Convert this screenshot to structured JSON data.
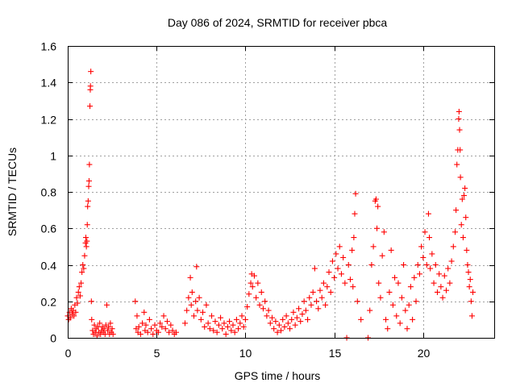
{
  "chart_data": {
    "type": "scatter",
    "title": "Day 086 of 2024, SRMTID for receiver pbca",
    "xlabel": "GPS time / hours",
    "ylabel": "SRMTID / TECUs",
    "xlim": [
      0,
      24
    ],
    "ylim": [
      0,
      1.6
    ],
    "xticks": [
      0,
      5,
      10,
      15,
      20
    ],
    "xtick_labels": [
      "0",
      "5",
      "10",
      "15",
      "20"
    ],
    "yticks": [
      0,
      0.2,
      0.4,
      0.6,
      0.8,
      1,
      1.2,
      1.4,
      1.6
    ],
    "ytick_labels": [
      "0",
      "0.2",
      "0.4",
      "0.6",
      "0.8",
      "1",
      "1.2",
      "1.4",
      "1.6"
    ],
    "grid": true,
    "marker": "+",
    "color": "#ff0000",
    "series": [
      {
        "name": "SRMTID",
        "points": [
          [
            0.0,
            0.12
          ],
          [
            0.05,
            0.1
          ],
          [
            0.1,
            0.14
          ],
          [
            0.15,
            0.11
          ],
          [
            0.2,
            0.16
          ],
          [
            0.25,
            0.13
          ],
          [
            0.3,
            0.15
          ],
          [
            0.35,
            0.12
          ],
          [
            0.4,
            0.18
          ],
          [
            0.45,
            0.14
          ],
          [
            0.5,
            0.22
          ],
          [
            0.55,
            0.19
          ],
          [
            0.6,
            0.25
          ],
          [
            0.65,
            0.28
          ],
          [
            0.7,
            0.23
          ],
          [
            0.75,
            0.3
          ],
          [
            0.8,
            0.36
          ],
          [
            0.85,
            0.4
          ],
          [
            0.9,
            0.38
          ],
          [
            0.95,
            0.45
          ],
          [
            1.0,
            0.52
          ],
          [
            1.02,
            0.55
          ],
          [
            1.05,
            0.5
          ],
          [
            1.08,
            0.53
          ],
          [
            1.1,
            0.62
          ],
          [
            1.12,
            0.72
          ],
          [
            1.15,
            0.75
          ],
          [
            1.18,
            0.83
          ],
          [
            1.2,
            0.86
          ],
          [
            1.22,
            0.95
          ],
          [
            1.25,
            1.27
          ],
          [
            1.27,
            1.36
          ],
          [
            1.28,
            1.38
          ],
          [
            1.3,
            1.46
          ],
          [
            1.33,
            0.2
          ],
          [
            1.35,
            0.1
          ],
          [
            1.4,
            0.04
          ],
          [
            1.45,
            0.02
          ],
          [
            1.5,
            0.07
          ],
          [
            1.55,
            0.03
          ],
          [
            1.6,
            0.05
          ],
          [
            1.65,
            0.01
          ],
          [
            1.7,
            0.06
          ],
          [
            1.75,
            0.03
          ],
          [
            1.8,
            0.08
          ],
          [
            1.85,
            0.02
          ],
          [
            1.9,
            0.04
          ],
          [
            1.95,
            0.06
          ],
          [
            2.0,
            0.03
          ],
          [
            2.05,
            0.05
          ],
          [
            2.1,
            0.02
          ],
          [
            2.15,
            0.07
          ],
          [
            2.2,
            0.18
          ],
          [
            2.25,
            0.04
          ],
          [
            2.3,
            0.06
          ],
          [
            2.35,
            0.02
          ],
          [
            2.4,
            0.08
          ],
          [
            2.45,
            0.03
          ],
          [
            2.5,
            0.05
          ],
          [
            2.55,
            0.02
          ],
          [
            3.8,
            0.2
          ],
          [
            3.85,
            0.05
          ],
          [
            3.9,
            0.12
          ],
          [
            3.95,
            0.03
          ],
          [
            4.0,
            0.06
          ],
          [
            4.1,
            0.02
          ],
          [
            4.2,
            0.08
          ],
          [
            4.3,
            0.14
          ],
          [
            4.35,
            0.04
          ],
          [
            4.4,
            0.07
          ],
          [
            4.5,
            0.03
          ],
          [
            4.6,
            0.1
          ],
          [
            4.7,
            0.05
          ],
          [
            4.8,
            0.02
          ],
          [
            4.9,
            0.07
          ],
          [
            5.0,
            0.04
          ],
          [
            5.1,
            0.03
          ],
          [
            5.2,
            0.08
          ],
          [
            5.3,
            0.06
          ],
          [
            5.4,
            0.12
          ],
          [
            5.5,
            0.05
          ],
          [
            5.6,
            0.09
          ],
          [
            5.7,
            0.03
          ],
          [
            5.8,
            0.07
          ],
          [
            5.9,
            0.04
          ],
          [
            6.0,
            0.02
          ],
          [
            6.1,
            0.03
          ],
          [
            6.6,
            0.08
          ],
          [
            6.7,
            0.15
          ],
          [
            6.8,
            0.22
          ],
          [
            6.9,
            0.33
          ],
          [
            6.95,
            0.18
          ],
          [
            7.0,
            0.25
          ],
          [
            7.1,
            0.12
          ],
          [
            7.2,
            0.2
          ],
          [
            7.25,
            0.39
          ],
          [
            7.3,
            0.15
          ],
          [
            7.4,
            0.22
          ],
          [
            7.5,
            0.1
          ],
          [
            7.6,
            0.14
          ],
          [
            7.7,
            0.06
          ],
          [
            7.8,
            0.18
          ],
          [
            7.9,
            0.08
          ],
          [
            8.0,
            0.05
          ],
          [
            8.1,
            0.12
          ],
          [
            8.2,
            0.04
          ],
          [
            8.3,
            0.09
          ],
          [
            8.4,
            0.03
          ],
          [
            8.5,
            0.07
          ],
          [
            8.6,
            0.11
          ],
          [
            8.7,
            0.05
          ],
          [
            8.8,
            0.08
          ],
          [
            8.9,
            0.02
          ],
          [
            9.0,
            0.06
          ],
          [
            9.1,
            0.09
          ],
          [
            9.2,
            0.04
          ],
          [
            9.3,
            0.07
          ],
          [
            9.4,
            0.03
          ],
          [
            9.5,
            0.1
          ],
          [
            9.6,
            0.05
          ],
          [
            9.7,
            0.08
          ],
          [
            9.8,
            0.12
          ],
          [
            9.9,
            0.06
          ],
          [
            10.0,
            0.1
          ],
          [
            10.1,
            0.17
          ],
          [
            10.2,
            0.24
          ],
          [
            10.3,
            0.3
          ],
          [
            10.35,
            0.35
          ],
          [
            10.4,
            0.28
          ],
          [
            10.5,
            0.34
          ],
          [
            10.6,
            0.22
          ],
          [
            10.7,
            0.3
          ],
          [
            10.8,
            0.18
          ],
          [
            10.9,
            0.25
          ],
          [
            11.0,
            0.16
          ],
          [
            11.1,
            0.2
          ],
          [
            11.2,
            0.12
          ],
          [
            11.3,
            0.15
          ],
          [
            11.4,
            0.08
          ],
          [
            11.5,
            0.11
          ],
          [
            11.6,
            0.05
          ],
          [
            11.7,
            0.09
          ],
          [
            11.8,
            0.03
          ],
          [
            11.9,
            0.07
          ],
          [
            12.0,
            0.04
          ],
          [
            12.1,
            0.1
          ],
          [
            12.2,
            0.06
          ],
          [
            12.3,
            0.12
          ],
          [
            12.4,
            0.08
          ],
          [
            12.5,
            0.05
          ],
          [
            12.6,
            0.1
          ],
          [
            12.7,
            0.14
          ],
          [
            12.8,
            0.07
          ],
          [
            12.9,
            0.11
          ],
          [
            13.0,
            0.16
          ],
          [
            13.1,
            0.09
          ],
          [
            13.2,
            0.13
          ],
          [
            13.3,
            0.2
          ],
          [
            13.4,
            0.15
          ],
          [
            13.5,
            0.1
          ],
          [
            13.6,
            0.22
          ],
          [
            13.7,
            0.18
          ],
          [
            13.8,
            0.25
          ],
          [
            13.9,
            0.38
          ],
          [
            14.0,
            0.2
          ],
          [
            14.1,
            0.16
          ],
          [
            14.2,
            0.26
          ],
          [
            14.3,
            0.22
          ],
          [
            14.4,
            0.3
          ],
          [
            14.5,
            0.18
          ],
          [
            14.6,
            0.28
          ],
          [
            14.7,
            0.36
          ],
          [
            14.8,
            0.25
          ],
          [
            14.9,
            0.42
          ],
          [
            15.0,
            0.33
          ],
          [
            15.1,
            0.46
          ],
          [
            15.2,
            0.38
          ],
          [
            15.3,
            0.5
          ],
          [
            15.4,
            0.35
          ],
          [
            15.5,
            0.44
          ],
          [
            15.6,
            0.3
          ],
          [
            15.7,
            0.0
          ],
          [
            15.8,
            0.4
          ],
          [
            15.9,
            0.32
          ],
          [
            16.0,
            0.48
          ],
          [
            16.05,
            0.28
          ],
          [
            16.1,
            0.55
          ],
          [
            16.15,
            0.68
          ],
          [
            16.2,
            0.79
          ],
          [
            16.3,
            0.2
          ],
          [
            16.5,
            0.1
          ],
          [
            16.9,
            0.0
          ],
          [
            17.0,
            0.15
          ],
          [
            17.1,
            0.4
          ],
          [
            17.2,
            0.5
          ],
          [
            17.3,
            0.75
          ],
          [
            17.35,
            0.76
          ],
          [
            17.4,
            0.6
          ],
          [
            17.45,
            0.72
          ],
          [
            17.5,
            0.3
          ],
          [
            17.6,
            0.22
          ],
          [
            17.7,
            0.45
          ],
          [
            17.8,
            0.58
          ],
          [
            17.9,
            0.1
          ],
          [
            18.0,
            0.05
          ],
          [
            18.1,
            0.25
          ],
          [
            18.2,
            0.48
          ],
          [
            18.3,
            0.18
          ],
          [
            18.4,
            0.33
          ],
          [
            18.5,
            0.12
          ],
          [
            18.6,
            0.3
          ],
          [
            18.7,
            0.08
          ],
          [
            18.8,
            0.22
          ],
          [
            18.9,
            0.4
          ],
          [
            19.0,
            0.15
          ],
          [
            19.1,
            0.05
          ],
          [
            19.2,
            0.18
          ],
          [
            19.3,
            0.28
          ],
          [
            19.4,
            0.1
          ],
          [
            19.5,
            0.33
          ],
          [
            19.6,
            0.2
          ],
          [
            19.7,
            0.4
          ],
          [
            19.8,
            0.35
          ],
          [
            19.9,
            0.5
          ],
          [
            20.0,
            0.44
          ],
          [
            20.1,
            0.58
          ],
          [
            20.2,
            0.4
          ],
          [
            20.3,
            0.68
          ],
          [
            20.35,
            0.55
          ],
          [
            20.4,
            0.38
          ],
          [
            20.5,
            0.46
          ],
          [
            20.6,
            0.3
          ],
          [
            20.7,
            0.4
          ],
          [
            20.8,
            0.25
          ],
          [
            20.9,
            0.35
          ],
          [
            21.0,
            0.28
          ],
          [
            21.1,
            0.22
          ],
          [
            21.2,
            0.34
          ],
          [
            21.3,
            0.26
          ],
          [
            21.4,
            0.38
          ],
          [
            21.5,
            0.3
          ],
          [
            21.6,
            0.42
          ],
          [
            21.7,
            0.5
          ],
          [
            21.8,
            0.58
          ],
          [
            21.85,
            0.7
          ],
          [
            21.9,
            0.95
          ],
          [
            21.95,
            1.03
          ],
          [
            22.0,
            1.2
          ],
          [
            22.02,
            1.24
          ],
          [
            22.05,
            1.14
          ],
          [
            22.08,
            1.03
          ],
          [
            22.1,
            0.88
          ],
          [
            22.15,
            0.62
          ],
          [
            22.2,
            0.76
          ],
          [
            22.25,
            0.55
          ],
          [
            22.3,
            0.78
          ],
          [
            22.35,
            0.82
          ],
          [
            22.4,
            0.66
          ],
          [
            22.45,
            0.48
          ],
          [
            22.5,
            0.4
          ],
          [
            22.55,
            0.36
          ],
          [
            22.6,
            0.28
          ],
          [
            22.65,
            0.32
          ],
          [
            22.7,
            0.2
          ],
          [
            22.75,
            0.12
          ],
          [
            22.8,
            0.25
          ]
        ]
      }
    ]
  }
}
